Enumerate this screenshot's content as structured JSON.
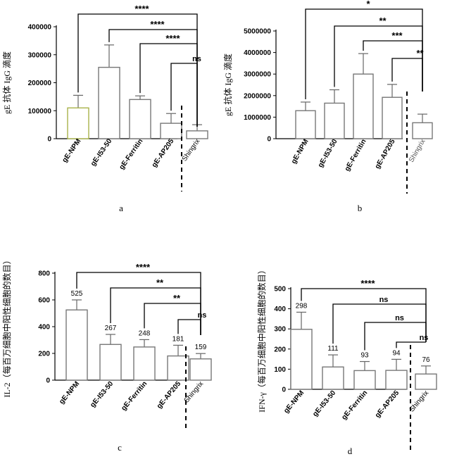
{
  "chart_data": [
    {
      "type": "bar",
      "panel_label": "a",
      "ylabel": "gE 抗体 IgG 滴度",
      "categories": [
        "gE-NPM",
        "gE-I53-50",
        "gE-Ferritin",
        "gE-AP205",
        "Shingrix"
      ],
      "values": [
        110000,
        255000,
        140000,
        55000,
        28000
      ],
      "errors": [
        45000,
        80000,
        13000,
        35000,
        22000
      ],
      "ylim": [
        0,
        400000
      ],
      "yticks": [
        "0",
        "100000",
        "200000",
        "300000",
        "400000"
      ],
      "value_labels": [],
      "significance": [
        "****",
        "****",
        "****",
        "ns"
      ]
    },
    {
      "type": "bar",
      "panel_label": "b",
      "ylabel": "gE 抗体 IgG 滴度",
      "categories": [
        "gE-NPM",
        "gE-I53-50",
        "gE-Ferritin",
        "gE-AP205",
        "Shingrix"
      ],
      "values": [
        1300000,
        1650000,
        3000000,
        1920000,
        740000
      ],
      "errors": [
        400000,
        620000,
        950000,
        600000,
        400000
      ],
      "ylim": [
        0,
        5000000
      ],
      "yticks": [
        "0",
        "1000000",
        "2000000",
        "3000000",
        "4000000",
        "5000000"
      ],
      "value_labels": [],
      "significance": [
        "*",
        "**",
        "***",
        "**"
      ]
    },
    {
      "type": "bar",
      "panel_label": "c",
      "ylabel": "IL-2（每百万细胞中阳性细胞的数目）",
      "categories": [
        "gE-NPM",
        "gE-I53-50",
        "gE-Ferritin",
        "gE-AP205",
        "Shingrix"
      ],
      "values": [
        525,
        267,
        248,
        181,
        159
      ],
      "errors": [
        75,
        75,
        55,
        80,
        40
      ],
      "ylim": [
        0,
        800
      ],
      "yticks": [
        "0",
        "200",
        "400",
        "600",
        "800"
      ],
      "value_labels": [
        "525",
        "267",
        "248",
        "181",
        "159"
      ],
      "significance": [
        "****",
        "**",
        "**",
        "ns"
      ]
    },
    {
      "type": "bar",
      "panel_label": "d",
      "ylabel": "IFN-γ（每百万细胞中阳性细胞的数目）",
      "categories": [
        "gE-NPM",
        "gE-I53-50",
        "gE-Ferritin",
        "gE-AP205",
        "Shingrix"
      ],
      "values": [
        298,
        111,
        93,
        94,
        76
      ],
      "errors": [
        85,
        60,
        45,
        55,
        40
      ],
      "ylim": [
        0,
        500
      ],
      "yticks": [
        "0",
        "100",
        "200",
        "300",
        "400",
        "500"
      ],
      "value_labels": [
        "298",
        "111",
        "93",
        "94",
        "76"
      ],
      "significance": [
        "****",
        "ns",
        "ns",
        "ns"
      ]
    }
  ]
}
